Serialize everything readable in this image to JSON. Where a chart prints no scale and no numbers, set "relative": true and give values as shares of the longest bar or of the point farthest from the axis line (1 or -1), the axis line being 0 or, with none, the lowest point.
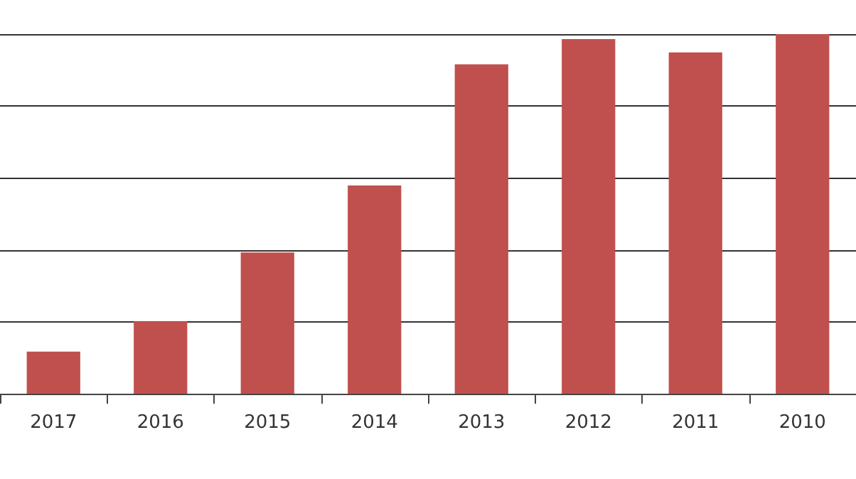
{
  "chart_data": {
    "type": "bar",
    "relative": true,
    "categories": [
      "2017",
      "2016",
      "2015",
      "2014",
      "2013",
      "2012",
      "2011",
      "2010"
    ],
    "values": [
      0.117,
      0.201,
      0.393,
      0.579,
      0.916,
      0.986,
      0.949,
      1
    ],
    "color": "#c0504d",
    "grid": "y"
  }
}
